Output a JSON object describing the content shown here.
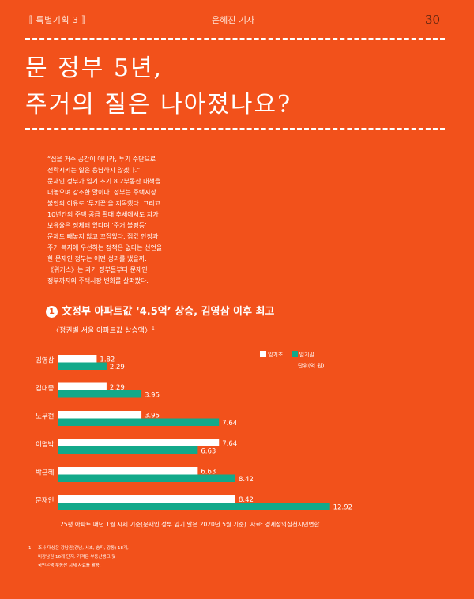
{
  "header": {
    "section_tag": "〚 특별기획 3 〛",
    "reporter": "은혜진 기자",
    "page_number": "30"
  },
  "title": {
    "line1": "문 정부 5년,",
    "line2": "주거의 질은 나아졌나요?"
  },
  "lead": [
    "“집을 거주 공간이 아니라, 투기 수단으로",
    "전락시키는 일은 용납하지 않겠다.”",
    "문재인 정부가 임기 초기 8.2부동산 대책을",
    "내놓으며 강조한 말이다. 정부는 주택시장",
    "불안의 이유로 ‘투기꾼’을 지목했다. 그리고",
    "10년간의 주택 공급 확대 추세에서도 자가",
    "보유율은 정체돼 있다며 ‘주거 불평등’",
    "문제도 빼놓지 않고 꼬집었다. 집값 안정과",
    "주거 복지에 우선하는 정책은 없다는 선언을",
    "한 문재인 정부는 어떤 성과를 냈을까.",
    "《위커스》는 과거 정부들부터 문재인",
    "정부까지의 주택시장 변화를 살펴봤다."
  ],
  "section": {
    "number": "1",
    "heading": "文정부 아파트값 ‘4.5억’ 상승, 김영삼 이후 최고"
  },
  "chart_data": {
    "type": "bar",
    "subtitle": "〈정권별 서울 아파트값 상승액〉",
    "footnote_marker": "1",
    "categories": [
      "김영삼",
      "김대중",
      "노무현",
      "이명박",
      "박근혜",
      "문재인"
    ],
    "series": [
      {
        "name": "임기초",
        "values": [
          1.82,
          2.29,
          3.95,
          7.64,
          6.63,
          8.42
        ],
        "color": "#ffffff"
      },
      {
        "name": "임기말",
        "values": [
          2.29,
          3.95,
          7.64,
          6.63,
          8.42,
          12.92
        ],
        "color": "#12a98a"
      }
    ],
    "value_labels": {
      "start": [
        "1.82",
        "2.29",
        "3.95",
        "7.64",
        "6.63",
        "8.42"
      ],
      "end": [
        "2.29",
        "3.95",
        "7.64",
        "6.63",
        "8.42",
        "12.92"
      ]
    },
    "unit": "단위(억 원)",
    "xlim": [
      0,
      13
    ],
    "orientation": "horizontal",
    "legend_position": "top-right"
  },
  "notes": {
    "basis": "25평 아파트 매년 1월 시세 기준(문재인 정부 임기 말은 2020년 5월 기준)",
    "source": "자료: 경제정의실천시민연합"
  },
  "footnote": {
    "number": "1",
    "lines": [
      "조사 대상은 강남권(강남, 서초, 송파, 강동) 18개,",
      "비강남권 16개 단지. 가격은 부동산뱅크 및",
      "국민은행 부동산 시세 자료를 활용."
    ]
  },
  "colors": {
    "background": "#f2511b",
    "series_start": "#ffffff",
    "series_end": "#12a98a"
  }
}
